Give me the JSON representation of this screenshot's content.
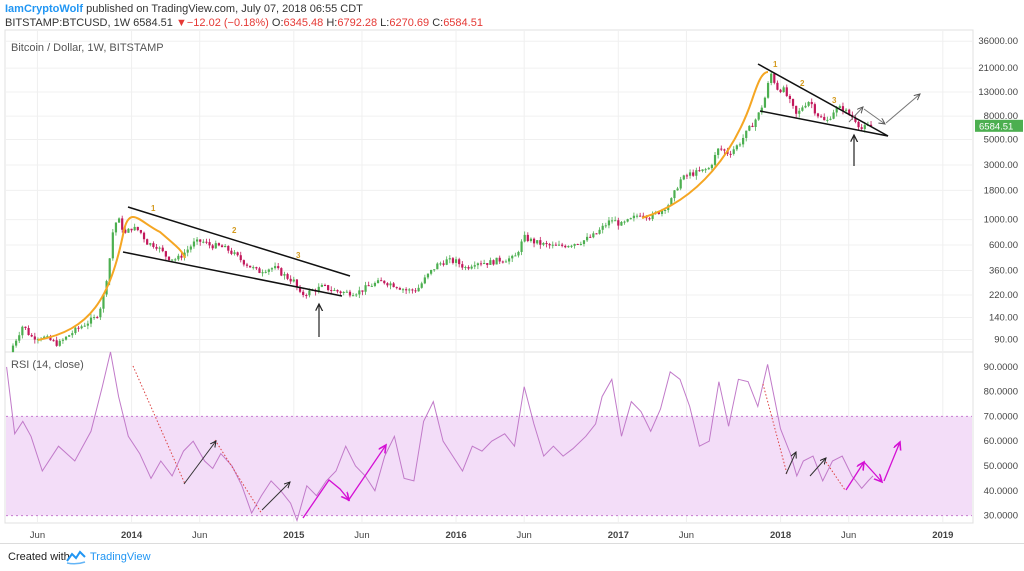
{
  "header": {
    "author": "IamCryptoWolf",
    "published": " published on TradingView.com, July 07, 2018 06:55 CDT",
    "symbol": "BITSTAMP:BTCUSD, 1W",
    "last": "6584.51",
    "change_arrow": "▼",
    "change": "−12.02 (−0.18%)",
    "o_label": "O:",
    "o_value": "6345.48",
    "h_label": "H:",
    "h_value": "6792.28",
    "l_label": "L:",
    "l_value": "6270.69",
    "c_label": "C:",
    "c_value": "6584.51"
  },
  "chart_data": [
    {
      "type": "candlestick",
      "title": "Bitcoin / Dollar, 1W, BITSTAMP",
      "scale": "log",
      "ylim": [
        70,
        40000
      ],
      "y_ticks": [
        "36000.00",
        "21000.00",
        "13000.00",
        "8000.00",
        "5000.00",
        "3000.00",
        "1800.00",
        "1000.00",
        "600.00",
        "360.00",
        "220.00",
        "140.00",
        "90.00"
      ],
      "last_price_label": "6584.51",
      "x_ticks": [
        "Jun",
        "2014",
        "Jun",
        "2015",
        "Jun",
        "2016",
        "Jun",
        "2017",
        "Jun",
        "2018",
        "Jun",
        "2019"
      ],
      "price_path": [
        [
          2013.25,
          70
        ],
        [
          2013.33,
          120
        ],
        [
          2013.38,
          95
        ],
        [
          2013.45,
          95
        ],
        [
          2013.55,
          82
        ],
        [
          2013.62,
          100
        ],
        [
          2013.7,
          120
        ],
        [
          2013.78,
          140
        ],
        [
          2013.82,
          190
        ],
        [
          2013.86,
          400
        ],
        [
          2013.89,
          900
        ],
        [
          2013.92,
          1000
        ],
        [
          2013.96,
          750
        ],
        [
          2014.0,
          850
        ],
        [
          2014.05,
          800
        ],
        [
          2014.1,
          620
        ],
        [
          2014.15,
          600
        ],
        [
          2014.22,
          470
        ],
        [
          2014.28,
          450
        ],
        [
          2014.33,
          520
        ],
        [
          2014.38,
          620
        ],
        [
          2014.43,
          650
        ],
        [
          2014.48,
          600
        ],
        [
          2014.55,
          580
        ],
        [
          2014.6,
          540
        ],
        [
          2014.68,
          440
        ],
        [
          2014.72,
          400
        ],
        [
          2014.78,
          350
        ],
        [
          2014.82,
          370
        ],
        [
          2014.88,
          380
        ],
        [
          2014.95,
          320
        ],
        [
          2015.0,
          290
        ],
        [
          2015.04,
          220
        ],
        [
          2015.1,
          235
        ],
        [
          2015.18,
          260
        ],
        [
          2015.25,
          240
        ],
        [
          2015.32,
          230
        ],
        [
          2015.4,
          235
        ],
        [
          2015.48,
          270
        ],
        [
          2015.55,
          290
        ],
        [
          2015.62,
          270
        ],
        [
          2015.7,
          240
        ],
        [
          2015.76,
          245
        ],
        [
          2015.82,
          320
        ],
        [
          2015.88,
          400
        ],
        [
          2015.94,
          440
        ],
        [
          2016.0,
          430
        ],
        [
          2016.06,
          380
        ],
        [
          2016.12,
          430
        ],
        [
          2016.2,
          420
        ],
        [
          2016.28,
          450
        ],
        [
          2016.36,
          460
        ],
        [
          2016.42,
          700
        ],
        [
          2016.48,
          640
        ],
        [
          2016.55,
          600
        ],
        [
          2016.62,
          580
        ],
        [
          2016.7,
          610
        ],
        [
          2016.78,
          650
        ],
        [
          2016.86,
          740
        ],
        [
          2016.92,
          900
        ],
        [
          2016.96,
          1000
        ],
        [
          2017.02,
          900
        ],
        [
          2017.08,
          1000
        ],
        [
          2017.14,
          1150
        ],
        [
          2017.2,
          1050
        ],
        [
          2017.26,
          1200
        ],
        [
          2017.32,
          1400
        ],
        [
          2017.38,
          2200
        ],
        [
          2017.44,
          2500
        ],
        [
          2017.5,
          2600
        ],
        [
          2017.56,
          2800
        ],
        [
          2017.62,
          4200
        ],
        [
          2017.68,
          3800
        ],
        [
          2017.74,
          4500
        ],
        [
          2017.8,
          6000
        ],
        [
          2017.86,
          8000
        ],
        [
          2017.9,
          11000
        ],
        [
          2017.94,
          19000
        ],
        [
          2017.98,
          14000
        ],
        [
          2018.02,
          13500
        ],
        [
          2018.06,
          10500
        ],
        [
          2018.1,
          8000
        ],
        [
          2018.14,
          10000
        ],
        [
          2018.18,
          11000
        ],
        [
          2018.22,
          8500
        ],
        [
          2018.28,
          7000
        ],
        [
          2018.33,
          9000
        ],
        [
          2018.38,
          9500
        ],
        [
          2018.42,
          8300
        ],
        [
          2018.46,
          7500
        ],
        [
          2018.5,
          6200
        ],
        [
          2018.54,
          6500
        ],
        [
          2018.57,
          6584.51
        ]
      ],
      "annotations": {
        "wave_labels": [
          "1",
          "2",
          "3",
          "1",
          "2",
          "3"
        ],
        "arrows": "up arrows under each triangle breakout; projected breakout arrows after current price",
        "triangles": "descending triangles 2014 and 2018",
        "fit_curves": "parabolic orange curves into each peak"
      }
    },
    {
      "type": "line",
      "title": "RSI (14, close)",
      "ylim": [
        27,
        96
      ],
      "band": [
        30,
        70
      ],
      "y_ticks": [
        "90.0000",
        "80.0000",
        "70.0000",
        "60.0000",
        "50.0000",
        "40.0000",
        "30.0000"
      ],
      "rsi_path": [
        [
          2013.23,
          90
        ],
        [
          2013.28,
          63
        ],
        [
          2013.33,
          68
        ],
        [
          2013.38,
          62
        ],
        [
          2013.45,
          48
        ],
        [
          2013.55,
          58
        ],
        [
          2013.65,
          52
        ],
        [
          2013.75,
          64
        ],
        [
          2013.82,
          82
        ],
        [
          2013.87,
          96
        ],
        [
          2013.92,
          78
        ],
        [
          2013.98,
          62
        ],
        [
          2014.05,
          55
        ],
        [
          2014.12,
          45
        ],
        [
          2014.18,
          52
        ],
        [
          2014.25,
          46
        ],
        [
          2014.32,
          56
        ],
        [
          2014.38,
          60
        ],
        [
          2014.45,
          52
        ],
        [
          2014.5,
          49
        ],
        [
          2014.55,
          55
        ],
        [
          2014.62,
          50
        ],
        [
          2014.68,
          42
        ],
        [
          2014.74,
          31
        ],
        [
          2014.8,
          38
        ],
        [
          2014.86,
          44
        ],
        [
          2014.92,
          40
        ],
        [
          2014.98,
          35
        ],
        [
          2015.02,
          28
        ],
        [
          2015.08,
          42
        ],
        [
          2015.14,
          38
        ],
        [
          2015.2,
          44
        ],
        [
          2015.26,
          48
        ],
        [
          2015.32,
          58
        ],
        [
          2015.38,
          50
        ],
        [
          2015.44,
          46
        ],
        [
          2015.5,
          40
        ],
        [
          2015.56,
          54
        ],
        [
          2015.62,
          62
        ],
        [
          2015.68,
          45
        ],
        [
          2015.74,
          44
        ],
        [
          2015.8,
          68
        ],
        [
          2015.86,
          76
        ],
        [
          2015.92,
          60
        ],
        [
          2015.98,
          54
        ],
        [
          2016.04,
          48
        ],
        [
          2016.1,
          58
        ],
        [
          2016.16,
          56
        ],
        [
          2016.22,
          60
        ],
        [
          2016.3,
          63
        ],
        [
          2016.36,
          58
        ],
        [
          2016.42,
          82
        ],
        [
          2016.48,
          67
        ],
        [
          2016.54,
          54
        ],
        [
          2016.6,
          58
        ],
        [
          2016.66,
          54
        ],
        [
          2016.72,
          57
        ],
        [
          2016.8,
          62
        ],
        [
          2016.86,
          67
        ],
        [
          2016.9,
          78
        ],
        [
          2016.96,
          85
        ],
        [
          2017.02,
          62
        ],
        [
          2017.08,
          76
        ],
        [
          2017.14,
          72
        ],
        [
          2017.2,
          64
        ],
        [
          2017.26,
          73
        ],
        [
          2017.32,
          88
        ],
        [
          2017.38,
          85
        ],
        [
          2017.44,
          74
        ],
        [
          2017.5,
          58
        ],
        [
          2017.56,
          60
        ],
        [
          2017.62,
          84
        ],
        [
          2017.68,
          66
        ],
        [
          2017.74,
          85
        ],
        [
          2017.8,
          84
        ],
        [
          2017.86,
          74
        ],
        [
          2017.92,
          91
        ],
        [
          2017.96,
          78
        ],
        [
          2018.0,
          65
        ],
        [
          2018.06,
          55
        ],
        [
          2018.1,
          46
        ],
        [
          2018.14,
          52
        ],
        [
          2018.2,
          54
        ],
        [
          2018.26,
          44
        ],
        [
          2018.32,
          52
        ],
        [
          2018.38,
          54
        ],
        [
          2018.44,
          46
        ],
        [
          2018.5,
          41
        ],
        [
          2018.54,
          44
        ],
        [
          2018.57,
          46
        ]
      ]
    }
  ],
  "footer": {
    "created_with": "Created with",
    "brand": "TradingView"
  },
  "colors": {
    "rsi_line": "#c17ac9",
    "rsi_band": "#f3ddf8",
    "up": "#4caf50",
    "down": "#c2185b",
    "fit": "#f5a623",
    "arrow_magenta": "#d40fd4"
  }
}
